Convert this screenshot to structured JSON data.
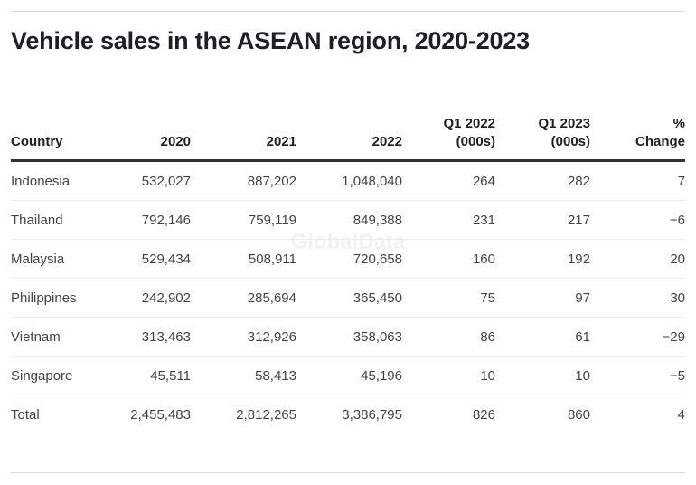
{
  "chart_data": {
    "type": "table",
    "title": "Vehicle sales in the ASEAN region, 2020-2023",
    "watermark": "GlobalData",
    "columns": [
      "Country",
      "2020",
      "2021",
      "2022",
      "Q1 2022\n(000s)",
      "Q1 2023\n(000s)",
      "%\nChange"
    ],
    "rows": [
      [
        "Indonesia",
        "532,027",
        "887,202",
        "1,048,040",
        "264",
        "282",
        "7"
      ],
      [
        "Thailand",
        "792,146",
        "759,119",
        "849,388",
        "231",
        "217",
        "−6"
      ],
      [
        "Malaysia",
        "529,434",
        "508,911",
        "720,658",
        "160",
        "192",
        "20"
      ],
      [
        "Philippines",
        "242,902",
        "285,694",
        "365,450",
        "75",
        "97",
        "30"
      ],
      [
        "Vietnam",
        "313,463",
        "312,926",
        "358,063",
        "86",
        "61",
        "−29"
      ],
      [
        "Singapore",
        "45,511",
        "58,413",
        "45,196",
        "10",
        "10",
        "−5"
      ],
      [
        "Total",
        "2,455,483",
        "2,812,265",
        "3,386,795",
        "826",
        "860",
        "4"
      ]
    ]
  }
}
